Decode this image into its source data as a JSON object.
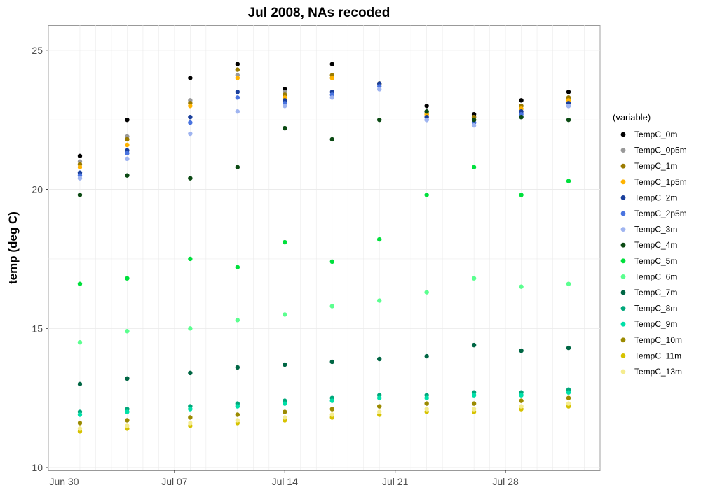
{
  "chart_data": {
    "type": "scatter",
    "title": "Jul 2008, NAs recoded",
    "xlabel": "",
    "ylabel": "temp (deg C)",
    "xlim": [
      "2008-06-29",
      "2008-08-03"
    ],
    "ylim": [
      9.9,
      25.9
    ],
    "x_ticks": [
      {
        "date": "2008-06-30",
        "label": "Jun 30"
      },
      {
        "date": "2008-07-07",
        "label": "Jul 07"
      },
      {
        "date": "2008-07-14",
        "label": "Jul 14"
      },
      {
        "date": "2008-07-21",
        "label": "Jul 21"
      },
      {
        "date": "2008-07-28",
        "label": "Jul 28"
      }
    ],
    "y_ticks": [
      10,
      15,
      20,
      25
    ],
    "grid": true,
    "legend_title": "(variable)",
    "legend_position": "right",
    "series": [
      {
        "name": "TempC_0m",
        "color": "#000000",
        "x": [
          "2008-07-01",
          "2008-07-04",
          "2008-07-08",
          "2008-07-11",
          "2008-07-14",
          "2008-07-17",
          "2008-07-20",
          "2008-07-23",
          "2008-07-26",
          "2008-07-29",
          "2008-08-01"
        ],
        "values": [
          21.2,
          22.5,
          24.0,
          24.5,
          23.6,
          24.5,
          23.8,
          23.0,
          22.7,
          23.2,
          23.5
        ]
      },
      {
        "name": "TempC_0p5m",
        "color": "#999999",
        "x": [
          "2008-07-01",
          "2008-07-04",
          "2008-07-08",
          "2008-07-11",
          "2008-07-14",
          "2008-07-17",
          "2008-07-20",
          "2008-07-23",
          "2008-07-26",
          "2008-07-29",
          "2008-08-01"
        ],
        "values": [
          21.0,
          21.9,
          23.2,
          24.1,
          23.5,
          24.0,
          23.8,
          22.8,
          22.6,
          23.0,
          23.3
        ]
      },
      {
        "name": "TempC_1m",
        "color": "#9b7b00",
        "x": [
          "2008-07-01",
          "2008-07-04",
          "2008-07-08",
          "2008-07-11",
          "2008-07-14",
          "2008-07-17",
          "2008-07-20",
          "2008-07-23",
          "2008-07-26",
          "2008-07-29",
          "2008-08-01"
        ],
        "values": [
          20.9,
          21.8,
          23.1,
          24.3,
          23.4,
          24.1,
          23.8,
          22.7,
          22.6,
          23.0,
          23.3
        ]
      },
      {
        "name": "TempC_1p5m",
        "color": "#ffb300",
        "x": [
          "2008-07-01",
          "2008-07-04",
          "2008-07-08",
          "2008-07-11",
          "2008-07-14",
          "2008-07-17",
          "2008-07-20",
          "2008-07-23",
          "2008-07-26",
          "2008-07-29",
          "2008-08-01"
        ],
        "values": [
          20.8,
          21.6,
          23.0,
          24.0,
          23.3,
          24.0,
          23.8,
          22.7,
          22.5,
          22.9,
          23.2
        ]
      },
      {
        "name": "TempC_2m",
        "color": "#1a3f9c",
        "x": [
          "2008-07-01",
          "2008-07-04",
          "2008-07-08",
          "2008-07-11",
          "2008-07-14",
          "2008-07-17",
          "2008-07-20",
          "2008-07-23",
          "2008-07-26",
          "2008-07-29",
          "2008-08-01"
        ],
        "values": [
          20.6,
          21.4,
          22.6,
          23.5,
          23.2,
          23.5,
          23.8,
          22.6,
          22.4,
          22.8,
          23.1
        ]
      },
      {
        "name": "TempC_2p5m",
        "color": "#4a74e0",
        "x": [
          "2008-07-01",
          "2008-07-04",
          "2008-07-08",
          "2008-07-11",
          "2008-07-14",
          "2008-07-17",
          "2008-07-20",
          "2008-07-23",
          "2008-07-26",
          "2008-07-29",
          "2008-08-01"
        ],
        "values": [
          20.5,
          21.3,
          22.4,
          23.3,
          23.1,
          23.4,
          23.7,
          22.5,
          22.4,
          22.7,
          23.0
        ]
      },
      {
        "name": "TempC_3m",
        "color": "#9fb4f0",
        "x": [
          "2008-07-01",
          "2008-07-04",
          "2008-07-08",
          "2008-07-11",
          "2008-07-14",
          "2008-07-17",
          "2008-07-20",
          "2008-07-23",
          "2008-07-26",
          "2008-07-29",
          "2008-08-01"
        ],
        "values": [
          20.4,
          21.1,
          22.0,
          22.8,
          23.0,
          23.3,
          23.6,
          22.5,
          22.3,
          22.6,
          23.0
        ]
      },
      {
        "name": "TempC_4m",
        "color": "#0b4a13",
        "x": [
          "2008-07-01",
          "2008-07-04",
          "2008-07-08",
          "2008-07-11",
          "2008-07-14",
          "2008-07-17",
          "2008-07-20",
          "2008-07-23",
          "2008-07-26",
          "2008-07-29",
          "2008-08-01"
        ],
        "values": [
          19.8,
          20.5,
          20.4,
          20.8,
          22.2,
          21.8,
          22.5,
          22.8,
          22.5,
          22.6,
          22.5
        ]
      },
      {
        "name": "TempC_5m",
        "color": "#00e03c",
        "x": [
          "2008-07-01",
          "2008-07-04",
          "2008-07-08",
          "2008-07-11",
          "2008-07-14",
          "2008-07-17",
          "2008-07-20",
          "2008-07-23",
          "2008-07-26",
          "2008-07-29",
          "2008-08-01"
        ],
        "values": [
          16.6,
          16.8,
          17.5,
          17.2,
          18.1,
          17.4,
          18.2,
          19.8,
          20.8,
          19.8,
          20.3
        ]
      },
      {
        "name": "TempC_6m",
        "color": "#5bff8f",
        "x": [
          "2008-07-01",
          "2008-07-04",
          "2008-07-08",
          "2008-07-11",
          "2008-07-14",
          "2008-07-17",
          "2008-07-20",
          "2008-07-23",
          "2008-07-26",
          "2008-07-29",
          "2008-08-01"
        ],
        "values": [
          14.5,
          14.9,
          15.0,
          15.3,
          15.5,
          15.8,
          16.0,
          16.3,
          16.8,
          16.5,
          16.6
        ]
      },
      {
        "name": "TempC_7m",
        "color": "#006644",
        "x": [
          "2008-07-01",
          "2008-07-04",
          "2008-07-08",
          "2008-07-11",
          "2008-07-14",
          "2008-07-17",
          "2008-07-20",
          "2008-07-23",
          "2008-07-26",
          "2008-07-29",
          "2008-08-01"
        ],
        "values": [
          13.0,
          13.2,
          13.4,
          13.6,
          13.7,
          13.8,
          13.9,
          14.0,
          14.4,
          14.2,
          14.3
        ]
      },
      {
        "name": "TempC_8m",
        "color": "#00a77a",
        "x": [
          "2008-07-01",
          "2008-07-04",
          "2008-07-08",
          "2008-07-11",
          "2008-07-14",
          "2008-07-17",
          "2008-07-20",
          "2008-07-23",
          "2008-07-26",
          "2008-07-29",
          "2008-08-01"
        ],
        "values": [
          12.0,
          12.1,
          12.2,
          12.3,
          12.4,
          12.5,
          12.6,
          12.6,
          12.7,
          12.7,
          12.8
        ]
      },
      {
        "name": "TempC_9m",
        "color": "#00e0a8",
        "x": [
          "2008-07-01",
          "2008-07-04",
          "2008-07-08",
          "2008-07-11",
          "2008-07-14",
          "2008-07-17",
          "2008-07-20",
          "2008-07-23",
          "2008-07-26",
          "2008-07-29",
          "2008-08-01"
        ],
        "values": [
          11.9,
          12.0,
          12.1,
          12.2,
          12.3,
          12.4,
          12.5,
          12.5,
          12.6,
          12.6,
          12.7
        ]
      },
      {
        "name": "TempC_10m",
        "color": "#9b8a00",
        "x": [
          "2008-07-01",
          "2008-07-04",
          "2008-07-08",
          "2008-07-11",
          "2008-07-14",
          "2008-07-17",
          "2008-07-20",
          "2008-07-23",
          "2008-07-26",
          "2008-07-29",
          "2008-08-01"
        ],
        "values": [
          11.6,
          11.7,
          11.8,
          11.9,
          12.0,
          12.1,
          12.2,
          12.3,
          12.3,
          12.4,
          12.5
        ]
      },
      {
        "name": "TempC_11m",
        "color": "#d6c200",
        "x": [
          "2008-07-01",
          "2008-07-04",
          "2008-07-08",
          "2008-07-11",
          "2008-07-14",
          "2008-07-17",
          "2008-07-20",
          "2008-07-23",
          "2008-07-26",
          "2008-07-29",
          "2008-08-01"
        ],
        "values": [
          11.3,
          11.4,
          11.5,
          11.6,
          11.7,
          11.8,
          11.9,
          12.0,
          12.0,
          12.1,
          12.2
        ]
      },
      {
        "name": "TempC_13m",
        "color": "#f5ec8e",
        "x": [
          "2008-07-01",
          "2008-07-04",
          "2008-07-08",
          "2008-07-11",
          "2008-07-14",
          "2008-07-17",
          "2008-07-20",
          "2008-07-23",
          "2008-07-26",
          "2008-07-29",
          "2008-08-01"
        ],
        "values": [
          11.4,
          11.5,
          11.6,
          11.7,
          11.8,
          11.9,
          12.0,
          12.1,
          12.1,
          12.2,
          12.3
        ]
      }
    ]
  }
}
